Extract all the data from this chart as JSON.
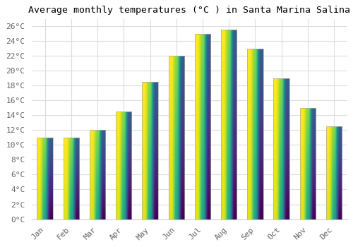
{
  "title": "Average monthly temperatures (°C ) in Santa Marina Salina",
  "months": [
    "Jan",
    "Feb",
    "Mar",
    "Apr",
    "May",
    "Jun",
    "Jul",
    "Aug",
    "Sep",
    "Oct",
    "Nov",
    "Dec"
  ],
  "values": [
    11,
    11,
    12,
    14.5,
    18.5,
    22,
    25,
    25.5,
    23,
    19,
    15,
    12.5
  ],
  "bar_color_bottom": "#F5A623",
  "bar_color_top": "#FFD966",
  "bar_edge_color": "#AAAAAA",
  "background_color": "#FFFFFF",
  "grid_color": "#DDDDDD",
  "ylim": [
    0,
    27
  ],
  "yticks": [
    0,
    2,
    4,
    6,
    8,
    10,
    12,
    14,
    16,
    18,
    20,
    22,
    24,
    26
  ],
  "title_fontsize": 9.5,
  "tick_fontsize": 8,
  "font_family": "monospace"
}
